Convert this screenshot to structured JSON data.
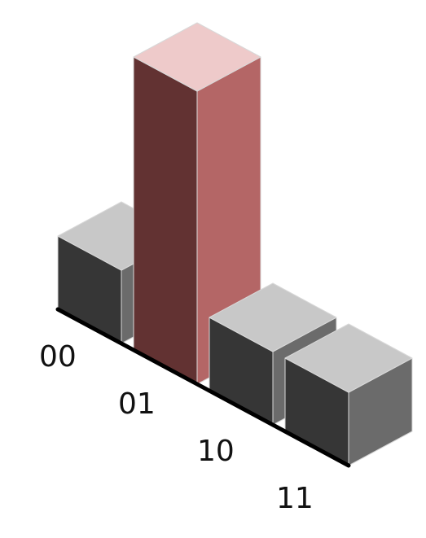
{
  "chart_data": {
    "type": "bar",
    "style": "3d-isometric",
    "title": "",
    "xlabel": "",
    "ylabel": "",
    "categories": [
      "00",
      "01",
      "10",
      "11"
    ],
    "values": [
      1,
      4,
      1,
      1
    ],
    "highlight_index": 1,
    "grid": false,
    "legend": "none"
  },
  "colors": {
    "default_top": "#c8c8c8",
    "default_front": "#363636",
    "default_side": "#6b6b6b",
    "highlight_top": "#eecaca",
    "highlight_front": "#623232",
    "highlight_side": "#b46666",
    "axis": "#000000",
    "edge": "#d8d8d8"
  }
}
